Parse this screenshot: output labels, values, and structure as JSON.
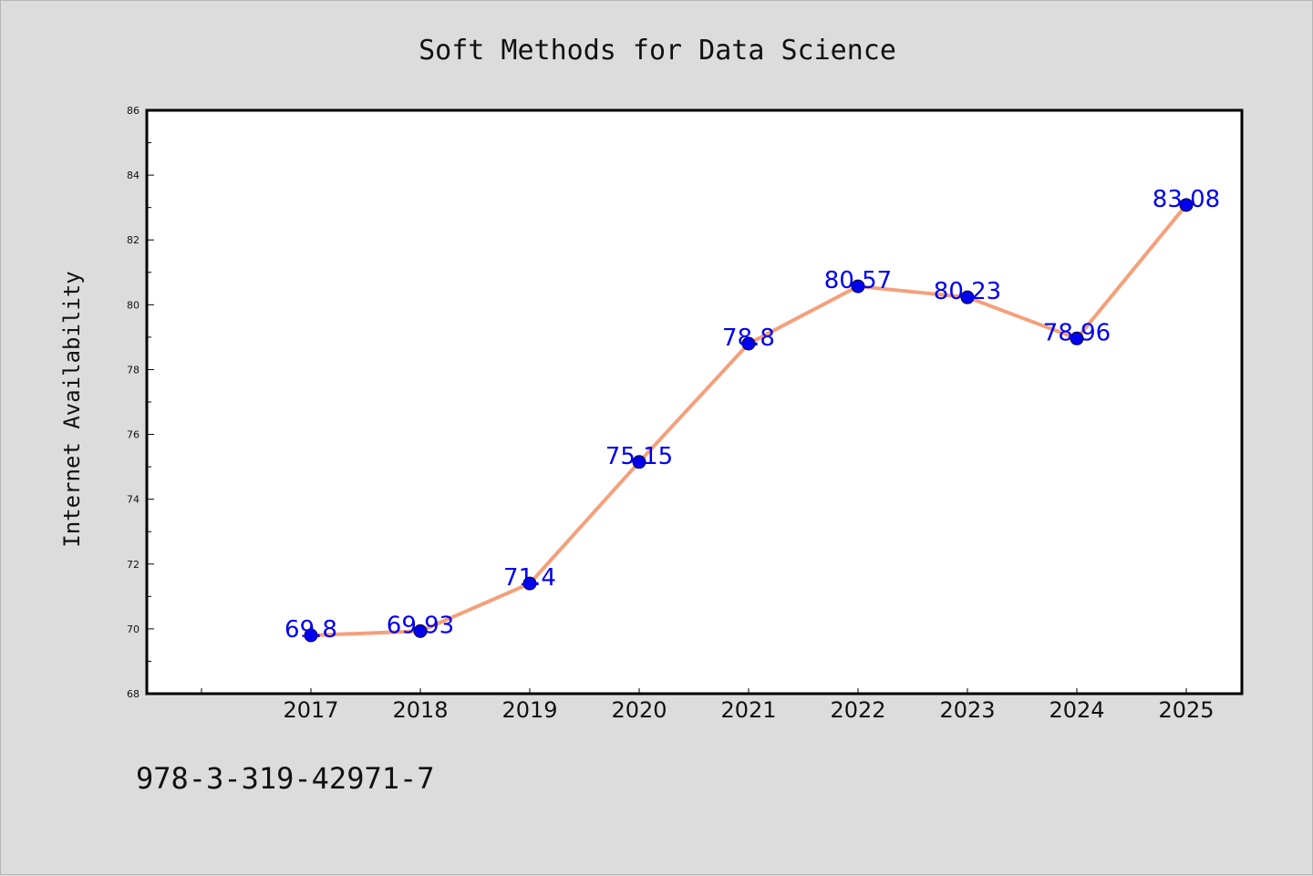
{
  "chart_data": {
    "type": "line",
    "title": "Soft Methods for Data Science",
    "xlabel": "",
    "ylabel": "Internet Availability",
    "categories": [
      "2017",
      "2018",
      "2019",
      "2020",
      "2021",
      "2022",
      "2023",
      "2024",
      "2025"
    ],
    "values": [
      69.8,
      69.93,
      71.4,
      75.15,
      78.8,
      80.57,
      80.23,
      78.96,
      83.08
    ],
    "data_labels": [
      "69.8",
      "69.93",
      "71.4",
      "75.15",
      "78.8",
      "80.57",
      "80.23",
      "78.96",
      "83.08"
    ],
    "ylim": [
      68,
      86
    ],
    "yticks": [
      "68",
      "70",
      "72",
      "74",
      "76",
      "78",
      "80",
      "82",
      "84",
      "86"
    ],
    "grid": false,
    "line_color": "#f4a07c",
    "marker_color": "#0000ee",
    "label_color": "#0000ee",
    "background_color": "#dcdcdc",
    "plot_background": "#ffffff"
  },
  "footer": {
    "text": "978-3-319-42971-7"
  }
}
